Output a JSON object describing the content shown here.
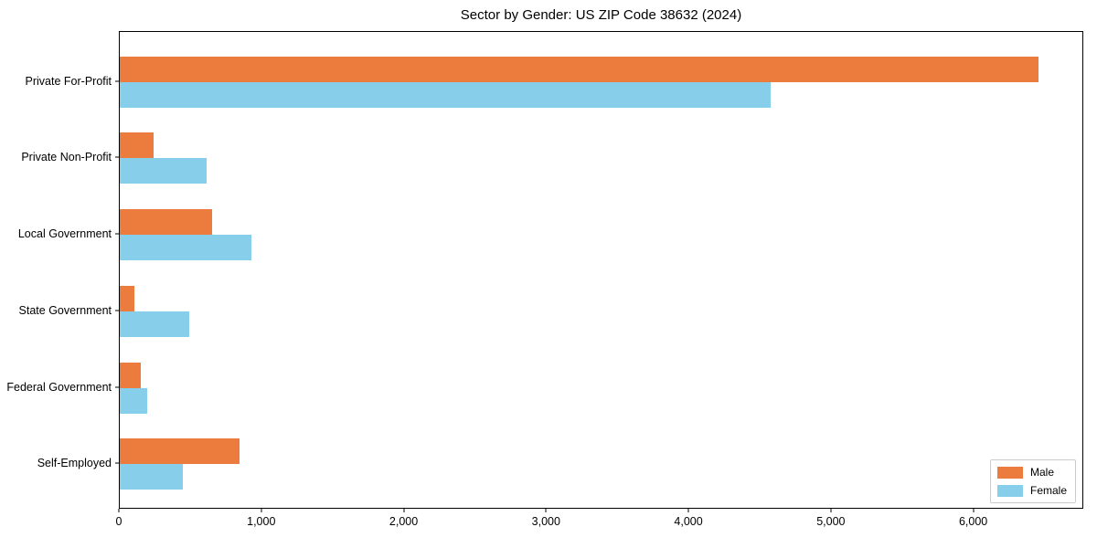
{
  "title": "Sector by Gender: US ZIP Code 38632 (2024)",
  "chart_data": {
    "type": "bar",
    "orientation": "horizontal",
    "title": "Sector by Gender: US ZIP Code 38632 (2024)",
    "categories": [
      "Private For-Profit",
      "Private Non-Profit",
      "Local Government",
      "State Government",
      "Federal Government",
      "Self-Employed"
    ],
    "series": [
      {
        "name": "Male",
        "color": "#ec7c3e",
        "values": [
          6450,
          235,
          650,
          100,
          145,
          840
        ]
      },
      {
        "name": "Female",
        "color": "#87ceeb",
        "values": [
          4570,
          610,
          925,
          490,
          190,
          445
        ]
      }
    ],
    "xlabel": "",
    "ylabel": "",
    "xlim": [
      0,
      6760
    ],
    "x_ticks": [
      0,
      1000,
      2000,
      3000,
      4000,
      5000,
      6000
    ],
    "x_tick_labels": [
      "0",
      "1,000",
      "2,000",
      "3,000",
      "4,000",
      "5,000",
      "6,000"
    ],
    "grid": false,
    "legend_position": "lower right",
    "legend_items": [
      "Male",
      "Female"
    ]
  }
}
